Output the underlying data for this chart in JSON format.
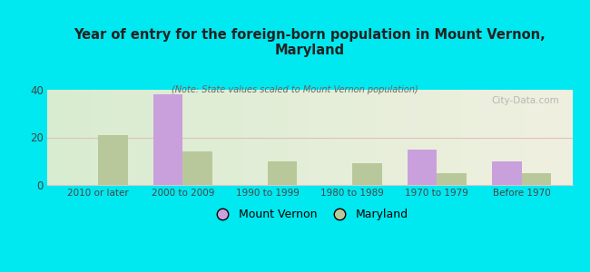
{
  "title": "Year of entry for the foreign-born population in Mount Vernon,\nMaryland",
  "subtitle": "(Note: State values scaled to Mount Vernon population)",
  "categories": [
    "2010 or later",
    "2000 to 2009",
    "1990 to 1999",
    "1980 to 1989",
    "1970 to 1979",
    "Before 1970"
  ],
  "mount_vernon": [
    0,
    38,
    0,
    0,
    15,
    10
  ],
  "maryland": [
    21,
    14,
    10,
    9,
    5,
    5
  ],
  "mv_color": "#c9a0dc",
  "md_color": "#b8c89a",
  "background_color": "#00e8f0",
  "plot_bg_left": "#d8ecd0",
  "plot_bg_right": "#f0f0e0",
  "ylim": [
    0,
    40
  ],
  "yticks": [
    0,
    20,
    40
  ],
  "watermark": "City-Data.com",
  "legend_mv": "Mount Vernon",
  "legend_md": "Maryland",
  "bar_width": 0.35,
  "grid_color": "#e0c0c0",
  "spine_color": "#cccccc",
  "tick_label_color": "#444444",
  "title_color": "#222222",
  "subtitle_color": "#666666"
}
